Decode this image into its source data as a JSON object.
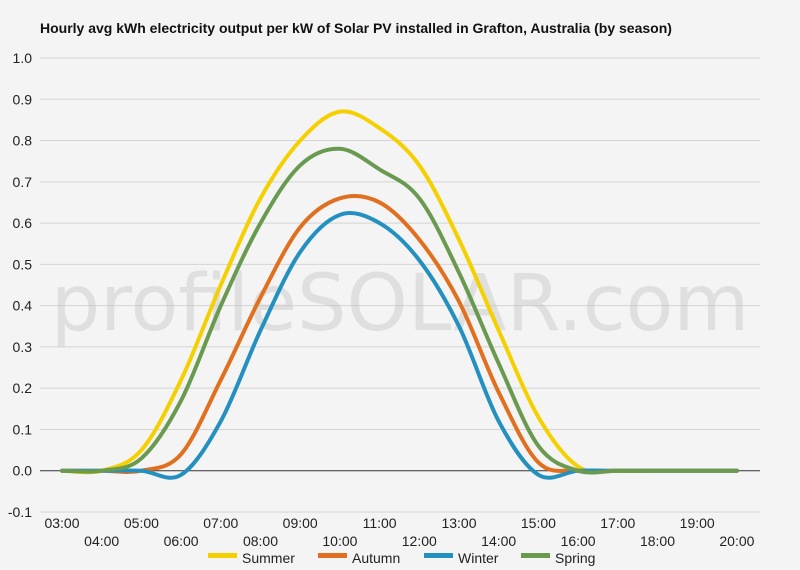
{
  "chart_data": {
    "type": "line",
    "title": "Hourly avg kWh electricity output per kW of Solar PV installed in Grafton, Australia (by season)",
    "watermark": "profileSOLAR.com",
    "categories": [
      "03:00",
      "04:00",
      "05:00",
      "06:00",
      "07:00",
      "08:00",
      "09:00",
      "10:00",
      "11:00",
      "12:00",
      "13:00",
      "14:00",
      "15:00",
      "16:00",
      "17:00",
      "18:00",
      "19:00",
      "20:00"
    ],
    "ylim": [
      -0.1,
      1.0
    ],
    "yticks": [
      "-0.1",
      "0.0",
      "0.1",
      "0.2",
      "0.3",
      "0.4",
      "0.5",
      "0.6",
      "0.7",
      "0.8",
      "0.9",
      "1.0"
    ],
    "grid": true,
    "legend_position": "bottom",
    "series": [
      {
        "name": "Summer",
        "color": "#f5d000",
        "values": [
          0.0,
          0.0,
          0.05,
          0.22,
          0.45,
          0.66,
          0.8,
          0.87,
          0.83,
          0.74,
          0.56,
          0.34,
          0.13,
          0.01,
          0.0,
          0.0,
          0.0,
          0.0
        ]
      },
      {
        "name": "Autumn",
        "color": "#e07020",
        "values": [
          0.0,
          0.0,
          0.0,
          0.04,
          0.22,
          0.42,
          0.59,
          0.66,
          0.65,
          0.56,
          0.41,
          0.19,
          0.02,
          0.0,
          0.0,
          0.0,
          0.0,
          0.0
        ]
      },
      {
        "name": "Winter",
        "color": "#2490c0",
        "values": [
          0.0,
          0.0,
          0.0,
          -0.01,
          0.12,
          0.34,
          0.53,
          0.62,
          0.6,
          0.51,
          0.35,
          0.12,
          -0.01,
          0.0,
          0.0,
          0.0,
          0.0,
          0.0
        ]
      },
      {
        "name": "Spring",
        "color": "#6a9a50",
        "values": [
          0.0,
          0.0,
          0.03,
          0.17,
          0.4,
          0.6,
          0.74,
          0.78,
          0.73,
          0.66,
          0.48,
          0.26,
          0.06,
          0.0,
          0.0,
          0.0,
          0.0,
          0.0
        ]
      }
    ]
  }
}
